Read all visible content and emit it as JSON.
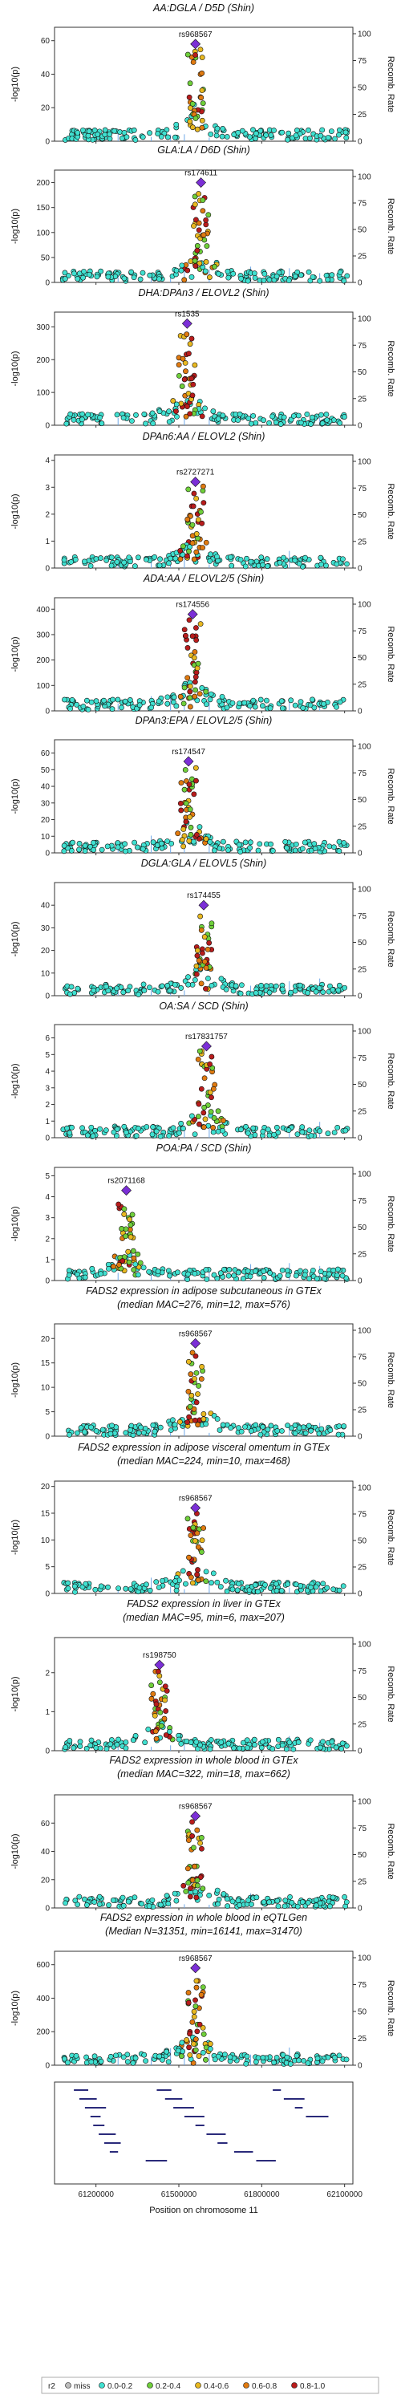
{
  "figure": {
    "xlabel": "Position on chromosome 11",
    "x_ticks": [
      61200000,
      61500000,
      61800000,
      62100000
    ],
    "xlim": [
      61050000,
      62130000
    ],
    "y_label_left": "-log10(p)",
    "y_label_right": "Recomb. Rate",
    "right_ticks": [
      0,
      25,
      50,
      75,
      100
    ],
    "legend": {
      "title": "r2",
      "entries": [
        {
          "label": "miss",
          "color": "#bdbdbd"
        },
        {
          "label": "0.0-0.2",
          "color": "#40e0d0"
        },
        {
          "label": "0.2-0.4",
          "color": "#6fcf3a"
        },
        {
          "label": "0.4-0.6",
          "color": "#e8b820"
        },
        {
          "label": "0.6-0.8",
          "color": "#e07a10"
        },
        {
          "label": "0.8-1.0",
          "color": "#b81c1c"
        }
      ],
      "lead_color": "#7b2fd6"
    }
  },
  "chart_data": [
    {
      "type": "scatter",
      "title": "AA:DGLA / D5D (Shin)",
      "lead_snp": "rs968567",
      "lead_x": 61560000,
      "lead_y": 58,
      "ylim": [
        0,
        68
      ],
      "yticks": [
        0,
        20,
        40,
        60
      ],
      "subtitle": ""
    },
    {
      "type": "scatter",
      "title": "GLA:LA / D6D (Shin)",
      "lead_snp": "rs174611",
      "lead_x": 61580000,
      "lead_y": 200,
      "ylim": [
        0,
        225
      ],
      "yticks": [
        0,
        50,
        100,
        150,
        200
      ],
      "subtitle": ""
    },
    {
      "type": "scatter",
      "title": "DHA:DPAn3 / ELOVL2 (Shin)",
      "lead_snp": "rs1535",
      "lead_x": 61530000,
      "lead_y": 310,
      "ylim": [
        0,
        345
      ],
      "yticks": [
        0,
        100,
        200,
        300
      ],
      "subtitle": ""
    },
    {
      "type": "scatter",
      "title": "DPAn6:AA / ELOVL2 (Shin)",
      "lead_snp": "rs2727271",
      "lead_x": 61560000,
      "lead_y": 3.2,
      "ylim": [
        0,
        4.2
      ],
      "yticks": [
        0,
        1,
        2,
        3,
        4
      ],
      "subtitle": ""
    },
    {
      "type": "scatter",
      "title": "ADA:AA / ELOVL2/5 (Shin)",
      "lead_snp": "rs174556",
      "lead_x": 61550000,
      "lead_y": 380,
      "ylim": [
        0,
        445
      ],
      "yticks": [
        0,
        100,
        200,
        300,
        400
      ],
      "subtitle": ""
    },
    {
      "type": "scatter",
      "title": "DPAn3:EPA / ELOVL2/5 (Shin)",
      "lead_snp": "rs174547",
      "lead_x": 61535000,
      "lead_y": 55,
      "ylim": [
        0,
        68
      ],
      "yticks": [
        0,
        10,
        20,
        30,
        40,
        50,
        60
      ],
      "subtitle": ""
    },
    {
      "type": "scatter",
      "title": "DGLA:GLA / ELOVL5 (Shin)",
      "lead_snp": "rs174455",
      "lead_x": 61590000,
      "lead_y": 40,
      "ylim": [
        0,
        50
      ],
      "yticks": [
        0,
        10,
        20,
        30,
        40
      ],
      "subtitle": ""
    },
    {
      "type": "scatter",
      "title": "OA:SA / SCD (Shin)",
      "lead_snp": "rs17831757",
      "lead_x": 61600000,
      "lead_y": 5.5,
      "ylim": [
        0,
        6.8
      ],
      "yticks": [
        0,
        1,
        2,
        3,
        4,
        5,
        6
      ],
      "subtitle": ""
    },
    {
      "type": "scatter",
      "title": "POA:PA / SCD (Shin)",
      "lead_snp": "rs2071168",
      "lead_x": 61310000,
      "lead_y": 4.3,
      "ylim": [
        0,
        5.4
      ],
      "yticks": [
        0,
        1,
        2,
        3,
        4,
        5
      ],
      "subtitle": ""
    },
    {
      "type": "scatter",
      "title": "FADS2 expression in adipose subcutaneous in GTEx",
      "subtitle": "(median MAC=276, min=12, max=576)",
      "lead_snp": "rs968567",
      "lead_x": 61560000,
      "lead_y": 19,
      "ylim": [
        0,
        23
      ],
      "yticks": [
        0,
        5,
        10,
        15,
        20
      ]
    },
    {
      "type": "scatter",
      "title": "FADS2 expression in adipose visceral omentum in GTEx",
      "subtitle": "(median MAC=224, min=10, max=468)",
      "lead_snp": "rs968567",
      "lead_x": 61560000,
      "lead_y": 16,
      "ylim": [
        0,
        21
      ],
      "yticks": [
        0,
        5,
        10,
        15,
        20
      ]
    },
    {
      "type": "scatter",
      "title": "FADS2 expression in liver in GTEx",
      "subtitle": "(median MAC=95, min=6, max=207)",
      "lead_snp": "rs198750",
      "lead_x": 61430000,
      "lead_y": 2.2,
      "ylim": [
        0,
        2.9
      ],
      "yticks": [
        0,
        1,
        2
      ]
    },
    {
      "type": "scatter",
      "title": "FADS2 expression in whole blood in GTEx",
      "subtitle": "(median MAC=322, min=18, max=662)",
      "lead_snp": "rs968567",
      "lead_x": 61560000,
      "lead_y": 65,
      "ylim": [
        0,
        80
      ],
      "yticks": [
        0,
        20,
        40,
        60
      ]
    },
    {
      "type": "scatter",
      "title": "FADS2 expression in whole blood in eQTLGen",
      "subtitle": "(Median N=31351, min=16141, max=31470)",
      "lead_snp": "rs968567",
      "lead_x": 61560000,
      "lead_y": 580,
      "ylim": [
        0,
        680
      ],
      "yticks": [
        0,
        200,
        400,
        600
      ]
    }
  ]
}
